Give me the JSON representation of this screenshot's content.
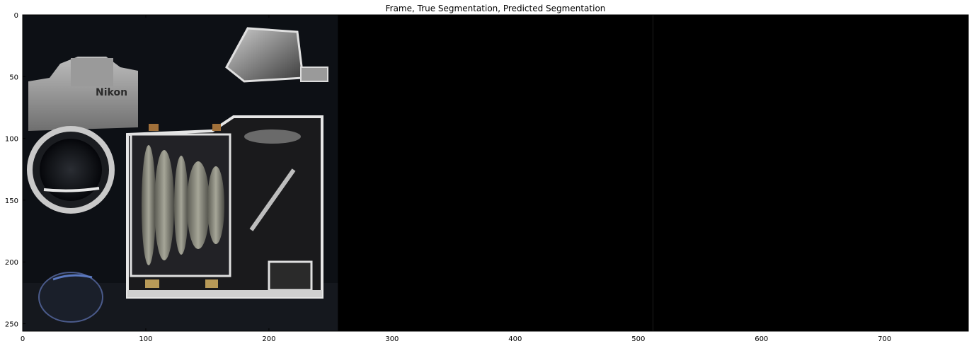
{
  "figure": {
    "title": "Frame, True Segmentation, Predicted Segmentation"
  },
  "axes": {
    "x_ticks": [
      {
        "value": 0,
        "label": "0"
      },
      {
        "value": 100,
        "label": "100"
      },
      {
        "value": 200,
        "label": "200"
      },
      {
        "value": 300,
        "label": "300"
      },
      {
        "value": 400,
        "label": "400"
      },
      {
        "value": 500,
        "label": "500"
      },
      {
        "value": 600,
        "label": "600"
      },
      {
        "value": 700,
        "label": "700"
      }
    ],
    "y_ticks": [
      {
        "value": 0,
        "label": "0"
      },
      {
        "value": 50,
        "label": "50"
      },
      {
        "value": 100,
        "label": "100"
      },
      {
        "value": 150,
        "label": "150"
      },
      {
        "value": 200,
        "label": "200"
      },
      {
        "value": 250,
        "label": "250"
      }
    ],
    "x_range": [
      0,
      768
    ],
    "y_range": [
      0,
      256
    ]
  },
  "panels": {
    "frame": {
      "x_start": 0,
      "x_end": 256
    },
    "true_segmentation": {
      "x_start": 256,
      "x_end": 512,
      "color": "#000000"
    },
    "predicted_segmentation": {
      "x_start": 512,
      "x_end": 768,
      "color": "#000000"
    }
  },
  "colors": {
    "background_dark": "#0d1015",
    "metal_light": "#d8d8d8",
    "metal_mid": "#8a8a8a",
    "brass": "#b89a58",
    "lens_glass": "#7f7f74"
  }
}
